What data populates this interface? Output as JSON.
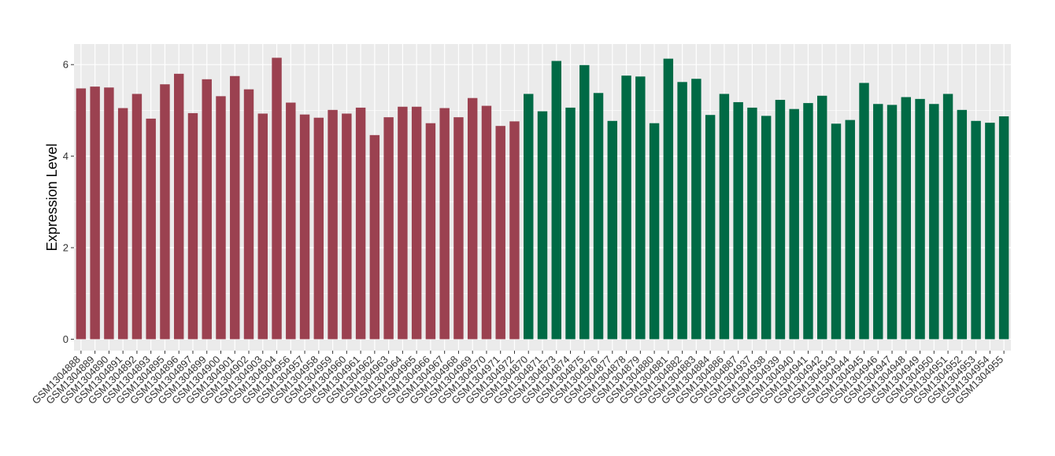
{
  "chart_data": {
    "type": "bar",
    "ylabel": "Expression Level",
    "xlabel": "",
    "ylim": [
      -0.25,
      6.45
    ],
    "yticks": [
      0,
      2,
      4,
      6
    ],
    "grid": true,
    "colors": {
      "group1": "#9b4150",
      "group2": "#006a45",
      "panel": "#ebebeb",
      "grid": "#ffffff"
    },
    "series": [
      {
        "group": "group1",
        "categories": [
          "GSM1304888",
          "GSM1304889",
          "GSM1304890",
          "GSM1304891",
          "GSM1304892",
          "GSM1304893",
          "GSM1304895",
          "GSM1304896",
          "GSM1304897",
          "GSM1304899",
          "GSM1304900",
          "GSM1304901",
          "GSM1304902",
          "GSM1304903",
          "GSM1304904",
          "GSM1304956",
          "GSM1304957",
          "GSM1304958",
          "GSM1304959",
          "GSM1304960",
          "GSM1304961",
          "GSM1304962",
          "GSM1304963",
          "GSM1304964",
          "GSM1304965",
          "GSM1304966",
          "GSM1304967",
          "GSM1304968",
          "GSM1304969",
          "GSM1304970",
          "GSM1304971",
          "GSM1304972"
        ],
        "values": [
          5.48,
          5.52,
          5.5,
          5.05,
          5.36,
          4.82,
          5.57,
          5.8,
          4.94,
          5.68,
          5.31,
          5.75,
          5.46,
          4.93,
          6.15,
          5.17,
          4.91,
          4.84,
          5.01,
          4.93,
          5.06,
          4.46,
          4.85,
          5.08,
          5.08,
          4.72,
          5.05,
          4.85,
          5.27,
          5.1,
          4.66,
          4.76
        ]
      },
      {
        "group": "group2",
        "categories": [
          "GSM1304870",
          "GSM1304871",
          "GSM1304873",
          "GSM1304874",
          "GSM1304875",
          "GSM1304876",
          "GSM1304877",
          "GSM1304878",
          "GSM1304879",
          "GSM1304880",
          "GSM1304881",
          "GSM1304882",
          "GSM1304883",
          "GSM1304884",
          "GSM1304886",
          "GSM1304887",
          "GSM1304937",
          "GSM1304938",
          "GSM1304939",
          "GSM1304940",
          "GSM1304941",
          "GSM1304942",
          "GSM1304943",
          "GSM1304944",
          "GSM1304945",
          "GSM1304946",
          "GSM1304947",
          "GSM1304948",
          "GSM1304949",
          "GSM1304950",
          "GSM1304951",
          "GSM1304952",
          "GSM1304953",
          "GSM1304954",
          "GSM1304955"
        ],
        "values": [
          5.36,
          4.98,
          6.08,
          5.06,
          5.99,
          5.38,
          4.77,
          5.76,
          5.74,
          4.72,
          6.13,
          5.62,
          5.69,
          4.9,
          5.36,
          5.18,
          5.06,
          4.88,
          5.23,
          5.03,
          5.16,
          5.32,
          4.71,
          4.79,
          5.6,
          5.14,
          5.12,
          5.29,
          5.25,
          5.14,
          5.36,
          5.01,
          4.77,
          4.73,
          4.87
        ]
      }
    ]
  }
}
